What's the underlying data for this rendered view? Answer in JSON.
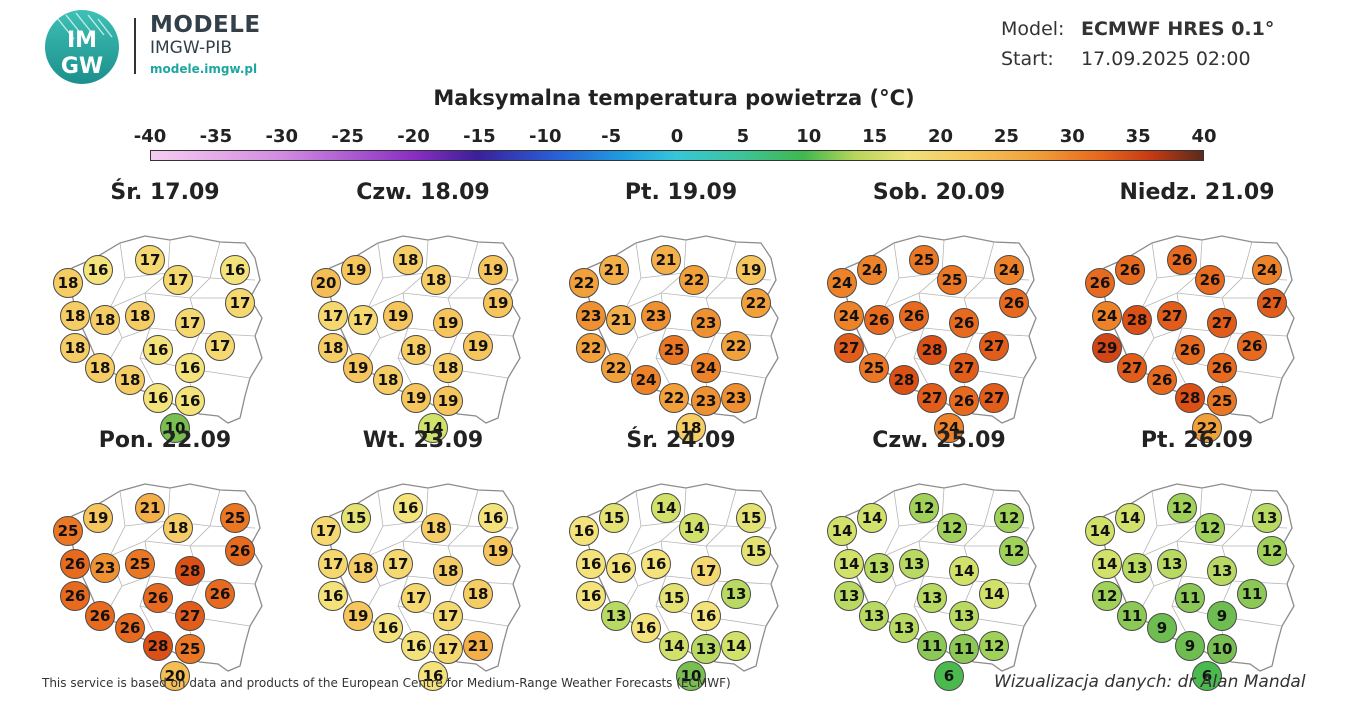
{
  "header": {
    "logo_text_top": "IM",
    "logo_text_bottom": "GW",
    "brand_title": "MODELE",
    "brand_subtitle": "IMGW-PIB",
    "brand_url": "modele.imgw.pl",
    "model_label": "Model:",
    "model_value": "ECMWF HRES 0.1°",
    "start_label": "Start:",
    "start_value": "17.09.2025 02:00"
  },
  "legend": {
    "title": "Maksymalna temperatura powietrza (°C)",
    "ticks": [
      "-40",
      "-35",
      "-30",
      "-25",
      "-20",
      "-15",
      "-10",
      "-5",
      "0",
      "5",
      "10",
      "15",
      "20",
      "25",
      "30",
      "35",
      "40"
    ]
  },
  "colors": {
    "marker_stroke": "#4a4a4a",
    "map_fill": "#ffffff",
    "map_border": "#8c8c8c",
    "brand_teal": "#1fa6a0"
  },
  "icons": {
    "logo": "imgw-logo-icon"
  },
  "days": [
    {
      "label": "Śr. 17.09",
      "values": [
        17,
        16,
        18,
        17,
        16,
        17,
        18,
        18,
        18,
        17,
        18,
        16,
        17,
        18,
        18,
        16,
        16,
        16,
        10
      ]
    },
    {
      "label": "Czw. 18.09",
      "values": [
        18,
        19,
        20,
        18,
        19,
        19,
        17,
        17,
        19,
        19,
        18,
        18,
        19,
        19,
        18,
        18,
        19,
        19,
        14
      ]
    },
    {
      "label": "Pt. 19.09",
      "values": [
        21,
        21,
        22,
        22,
        19,
        22,
        23,
        21,
        23,
        23,
        22,
        25,
        22,
        22,
        24,
        24,
        22,
        23,
        23,
        22,
        18
      ]
    },
    {
      "label": "Sob. 20.09",
      "values": [
        25,
        24,
        24,
        25,
        24,
        26,
        24,
        26,
        26,
        26,
        27,
        28,
        27,
        25,
        28,
        27,
        27,
        26,
        27,
        25,
        24
      ]
    },
    {
      "label": "Niedz. 21.09",
      "values": [
        26,
        26,
        26,
        26,
        24,
        27,
        24,
        28,
        27,
        27,
        29,
        26,
        26,
        27,
        26,
        26,
        28,
        25,
        22
      ]
    },
    {
      "label": "Pon. 22.09",
      "values": [
        21,
        19,
        25,
        18,
        25,
        26,
        26,
        23,
        25,
        28,
        26,
        26,
        26,
        26,
        26,
        27,
        28,
        25,
        20
      ]
    },
    {
      "label": "Wt. 23.09",
      "values": [
        16,
        15,
        17,
        18,
        16,
        19,
        17,
        18,
        17,
        18,
        16,
        17,
        18,
        19,
        16,
        17,
        16,
        17,
        21,
        16
      ]
    },
    {
      "label": "Śr. 24.09",
      "values": [
        14,
        15,
        16,
        14,
        15,
        15,
        16,
        16,
        16,
        17,
        16,
        15,
        13,
        13,
        16,
        16,
        14,
        13,
        14,
        10
      ]
    },
    {
      "label": "Czw. 25.09",
      "values": [
        12,
        14,
        14,
        12,
        12,
        12,
        14,
        13,
        13,
        14,
        13,
        13,
        14,
        13,
        13,
        13,
        11,
        11,
        12,
        6
      ]
    },
    {
      "label": "Pt. 26.09",
      "values": [
        12,
        14,
        14,
        12,
        13,
        12,
        14,
        13,
        13,
        13,
        12,
        11,
        11,
        11,
        9,
        9,
        9,
        10,
        6
      ]
    }
  ],
  "footer": {
    "left": "This service is based on data and products of the European Centre for Medium-Range Weather Forecasts (ECMWF)",
    "right": "Wizualizacja danych: dr Alan Mandal"
  }
}
